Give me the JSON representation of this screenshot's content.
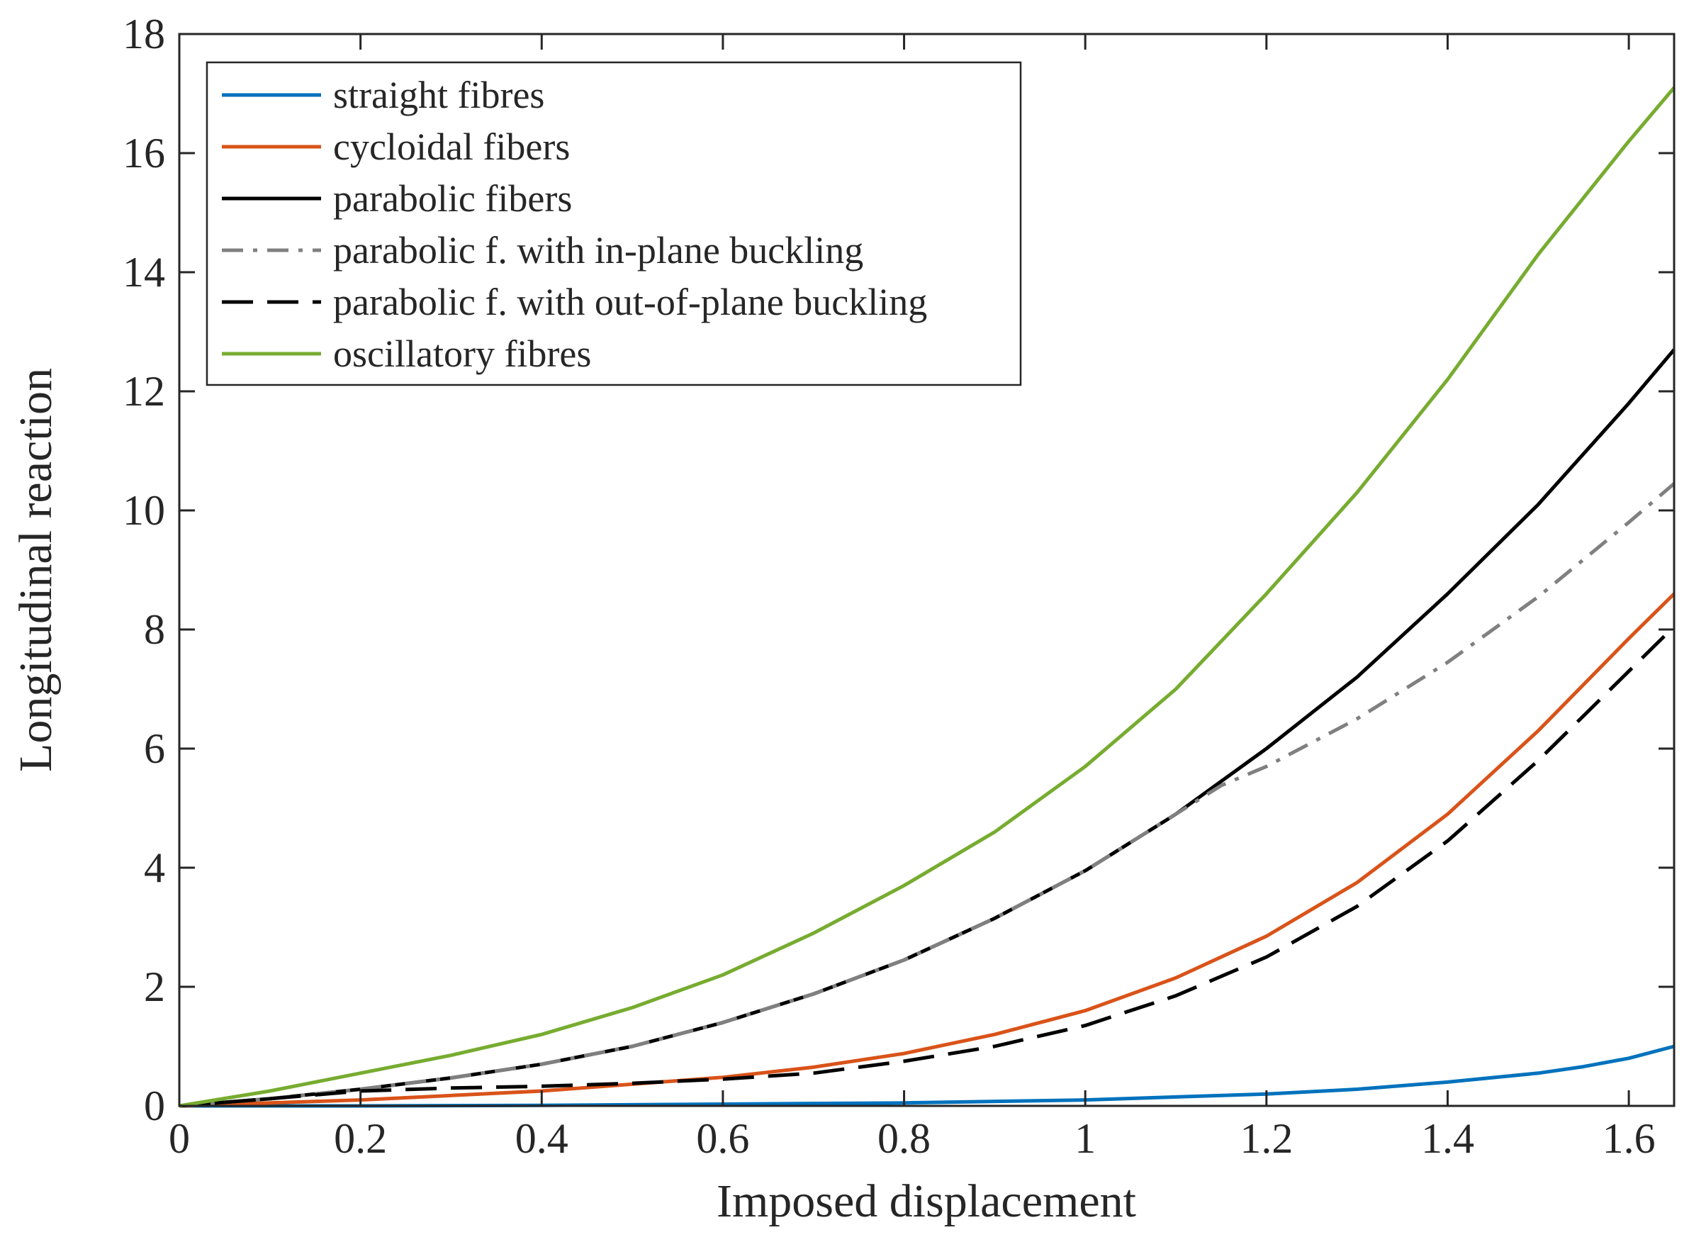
{
  "chart_data": {
    "type": "line",
    "title": "",
    "xlabel": "Imposed displacement",
    "ylabel": "Longitudinal reaction",
    "xlim": [
      0,
      1.65
    ],
    "ylim": [
      0,
      18
    ],
    "xticks": [
      0,
      0.2,
      0.4,
      0.6,
      0.8,
      1,
      1.2,
      1.4,
      1.6
    ],
    "yticks": [
      0,
      2,
      4,
      6,
      8,
      10,
      12,
      14,
      16,
      18
    ],
    "xtick_labels": [
      "0",
      "0.2",
      "0.4",
      "0.6",
      "0.8",
      "1",
      "1.2",
      "1.4",
      "1.6"
    ],
    "ytick_labels": [
      "0",
      "2",
      "4",
      "6",
      "8",
      "10",
      "12",
      "14",
      "16",
      "18"
    ],
    "grid": false,
    "legend_position": "top-left",
    "series": [
      {
        "name": "straight fibres",
        "color": "#0072bd",
        "style": "solid",
        "x": [
          0,
          0.2,
          0.4,
          0.6,
          0.8,
          1.0,
          1.2,
          1.3,
          1.4,
          1.5,
          1.55,
          1.6,
          1.65
        ],
        "y": [
          0,
          0,
          0.01,
          0.03,
          0.05,
          0.1,
          0.2,
          0.28,
          0.4,
          0.55,
          0.66,
          0.8,
          1.0
        ]
      },
      {
        "name": "cycloidal fibers",
        "color": "#d95319",
        "style": "solid",
        "x": [
          0,
          0.2,
          0.4,
          0.6,
          0.7,
          0.8,
          0.9,
          1.0,
          1.1,
          1.2,
          1.3,
          1.4,
          1.5,
          1.6,
          1.65
        ],
        "y": [
          0,
          0.1,
          0.25,
          0.48,
          0.65,
          0.88,
          1.2,
          1.6,
          2.15,
          2.85,
          3.75,
          4.9,
          6.3,
          7.85,
          8.6
        ]
      },
      {
        "name": "parabolic fibers",
        "color": "#000000",
        "style": "solid",
        "x": [
          0,
          0.1,
          0.2,
          0.3,
          0.4,
          0.5,
          0.6,
          0.7,
          0.8,
          0.9,
          1.0,
          1.1,
          1.2,
          1.3,
          1.4,
          1.5,
          1.6,
          1.65
        ],
        "y": [
          0,
          0.12,
          0.28,
          0.47,
          0.7,
          1.0,
          1.4,
          1.88,
          2.45,
          3.15,
          3.95,
          4.9,
          6.0,
          7.2,
          8.6,
          10.1,
          11.8,
          12.7
        ]
      },
      {
        "name": "parabolic f. with in-plane buckling",
        "color": "#808080",
        "style": "dashdot",
        "x": [
          0,
          0.1,
          0.2,
          0.3,
          0.4,
          0.5,
          0.6,
          0.7,
          0.8,
          0.9,
          1.0,
          1.1,
          1.15,
          1.2,
          1.3,
          1.4,
          1.5,
          1.6,
          1.65
        ],
        "y": [
          0,
          0.12,
          0.28,
          0.47,
          0.7,
          1.0,
          1.4,
          1.88,
          2.45,
          3.15,
          3.95,
          4.9,
          5.38,
          5.7,
          6.5,
          7.45,
          8.55,
          9.8,
          10.45
        ]
      },
      {
        "name": "parabolic f. with out-of-plane buckling",
        "color": "#000000",
        "style": "dashed",
        "x": [
          0,
          0.1,
          0.2,
          0.3,
          0.4,
          0.5,
          0.6,
          0.7,
          0.8,
          0.9,
          1.0,
          1.1,
          1.2,
          1.3,
          1.4,
          1.5,
          1.6,
          1.65
        ],
        "y": [
          0,
          0.12,
          0.25,
          0.3,
          0.33,
          0.38,
          0.45,
          0.55,
          0.75,
          1.0,
          1.35,
          1.85,
          2.5,
          3.35,
          4.45,
          5.8,
          7.3,
          8.05
        ]
      },
      {
        "name": "oscillatory fibres",
        "color": "#77ac30",
        "style": "solid",
        "x": [
          0,
          0.1,
          0.2,
          0.3,
          0.4,
          0.5,
          0.6,
          0.7,
          0.8,
          0.9,
          1.0,
          1.1,
          1.2,
          1.3,
          1.4,
          1.5,
          1.6,
          1.65
        ],
        "y": [
          0,
          0.25,
          0.55,
          0.85,
          1.2,
          1.65,
          2.2,
          2.9,
          3.7,
          4.6,
          5.7,
          7.0,
          8.6,
          10.3,
          12.2,
          14.3,
          16.2,
          17.1
        ]
      }
    ]
  }
}
